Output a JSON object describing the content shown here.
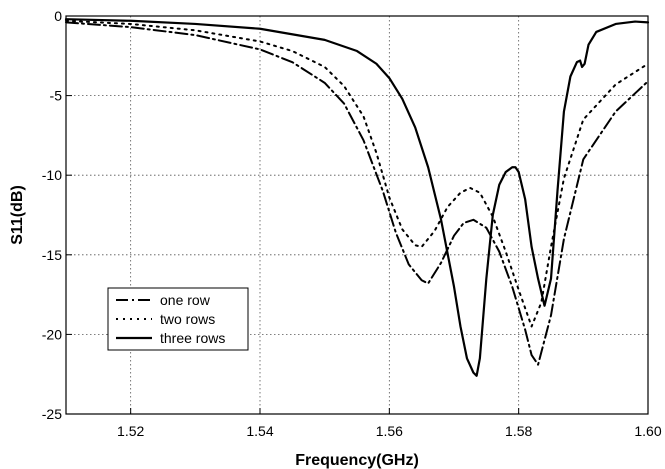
{
  "chart_data": {
    "type": "line",
    "title": "",
    "xlabel": "Frequency(GHz)",
    "ylabel": "S11(dB)",
    "xlim": [
      1.51,
      1.6
    ],
    "ylim": [
      -25,
      0
    ],
    "xticks": [
      1.52,
      1.54,
      1.56,
      1.58,
      1.6
    ],
    "xtick_labels": [
      "1.52",
      "1.54",
      "1.56",
      "1.58",
      "1.60"
    ],
    "yticks": [
      0,
      -5,
      -10,
      -15,
      -20,
      -25
    ],
    "ytick_labels": [
      "0",
      "-5",
      "-10",
      "-15",
      "-20",
      "-25"
    ],
    "grid": true,
    "legend_position": "lower-left",
    "series": [
      {
        "name": "one row",
        "style": "dash-dot",
        "color": "#000000",
        "x": [
          1.51,
          1.52,
          1.53,
          1.54,
          1.545,
          1.55,
          1.553,
          1.556,
          1.559,
          1.561,
          1.563,
          1.565,
          1.566,
          1.568,
          1.57,
          1.5715,
          1.573,
          1.575,
          1.577,
          1.579,
          1.581,
          1.582,
          1.583,
          1.585,
          1.587,
          1.59,
          1.595,
          1.6
        ],
        "y": [
          -0.4,
          -0.7,
          -1.2,
          -2.1,
          -2.9,
          -4.2,
          -5.5,
          -7.8,
          -11.0,
          -13.6,
          -15.6,
          -16.6,
          -16.8,
          -15.5,
          -13.8,
          -13.0,
          -12.8,
          -13.3,
          -14.8,
          -17.0,
          -19.7,
          -21.3,
          -21.9,
          -18.8,
          -14.0,
          -9.0,
          -6.0,
          -4.1
        ]
      },
      {
        "name": "two rows",
        "style": "dotted",
        "color": "#000000",
        "x": [
          1.51,
          1.52,
          1.53,
          1.54,
          1.545,
          1.55,
          1.553,
          1.556,
          1.558,
          1.56,
          1.562,
          1.564,
          1.565,
          1.567,
          1.569,
          1.571,
          1.5725,
          1.574,
          1.576,
          1.578,
          1.58,
          1.582,
          1.5835,
          1.585,
          1.587,
          1.59,
          1.595,
          1.6
        ],
        "y": [
          -0.3,
          -0.5,
          -0.9,
          -1.6,
          -2.2,
          -3.2,
          -4.4,
          -6.3,
          -8.6,
          -11.4,
          -13.4,
          -14.4,
          -14.5,
          -13.5,
          -12.0,
          -11.1,
          -10.8,
          -11.1,
          -12.6,
          -14.8,
          -17.2,
          -19.5,
          -18.0,
          -14.5,
          -10.2,
          -6.5,
          -4.3,
          -3.0
        ]
      },
      {
        "name": "three rows",
        "style": "solid",
        "color": "#000000",
        "x": [
          1.51,
          1.52,
          1.53,
          1.54,
          1.55,
          1.555,
          1.558,
          1.56,
          1.562,
          1.564,
          1.566,
          1.568,
          1.57,
          1.571,
          1.572,
          1.573,
          1.5735,
          1.574,
          1.575,
          1.576,
          1.577,
          1.578,
          1.579,
          1.5795,
          1.58,
          1.581,
          1.582,
          1.583,
          1.584,
          1.585,
          1.586,
          1.587,
          1.588,
          1.589,
          1.5895,
          1.5898,
          1.5902,
          1.5908,
          1.592,
          1.595,
          1.598,
          1.6
        ],
        "y": [
          -0.2,
          -0.3,
          -0.5,
          -0.8,
          -1.5,
          -2.2,
          -3.0,
          -3.9,
          -5.2,
          -7.0,
          -9.5,
          -12.8,
          -17.0,
          -19.5,
          -21.5,
          -22.4,
          -22.6,
          -21.5,
          -16.5,
          -12.5,
          -10.6,
          -9.8,
          -9.5,
          -9.5,
          -9.8,
          -11.5,
          -14.5,
          -16.5,
          -18.2,
          -16.5,
          -11.0,
          -6.0,
          -3.8,
          -2.9,
          -2.8,
          -3.2,
          -3.0,
          -1.8,
          -1.0,
          -0.5,
          -0.35,
          -0.4
        ]
      }
    ]
  }
}
